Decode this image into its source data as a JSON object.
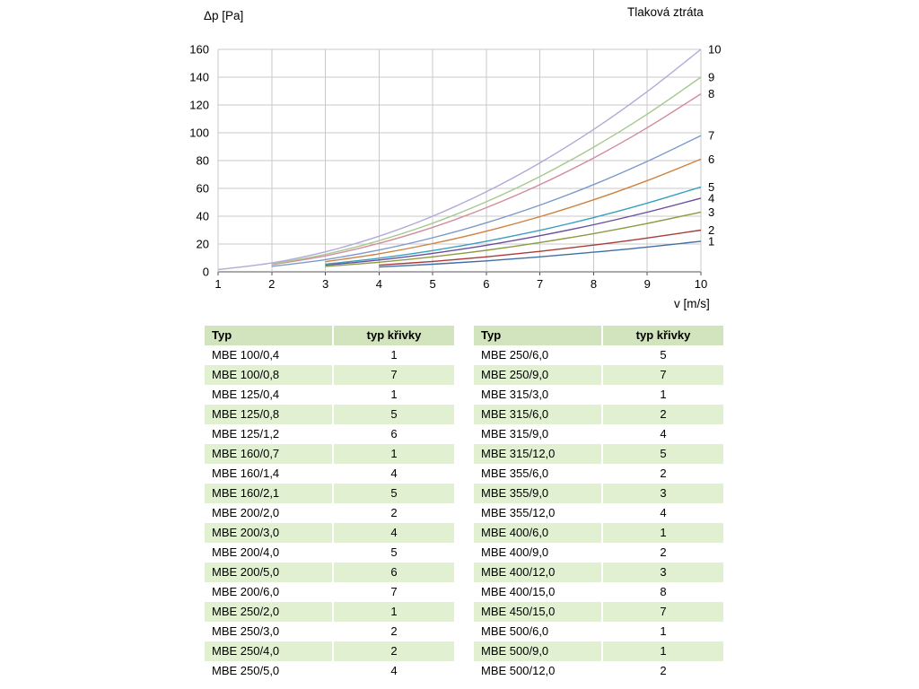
{
  "chart": {
    "title": "Tlaková ztráta",
    "y_axis_title": "Δp [Pa]",
    "x_axis_title": "v [m/s]"
  },
  "chart_data": {
    "type": "line",
    "title": "Tlaková ztráta",
    "xlabel": "v [m/s]",
    "ylabel": "Δp [Pa]",
    "xlim": [
      1,
      10
    ],
    "ylim": [
      0,
      160
    ],
    "x_ticks": [
      1,
      2,
      3,
      4,
      5,
      6,
      7,
      8,
      9,
      10
    ],
    "y_ticks": [
      0,
      20,
      40,
      60,
      80,
      100,
      120,
      140,
      160
    ],
    "grid": true,
    "legend_position": "curve-end-labels-right",
    "grid_color": "#c8c8c8",
    "axis_color": "#555555",
    "series": [
      {
        "name": "1",
        "color": "#3f6fa8",
        "points": [
          [
            4,
            3.5
          ],
          [
            5,
            5.5
          ],
          [
            6,
            7.9
          ],
          [
            7,
            10.8
          ],
          [
            8,
            14.1
          ],
          [
            9,
            17.8
          ],
          [
            10,
            22
          ]
        ]
      },
      {
        "name": "2",
        "color": "#a83c3c",
        "points": [
          [
            4,
            4.8
          ],
          [
            5,
            7.5
          ],
          [
            6,
            10.8
          ],
          [
            7,
            14.7
          ],
          [
            8,
            19.2
          ],
          [
            9,
            24.3
          ],
          [
            10,
            30
          ]
        ]
      },
      {
        "name": "3",
        "color": "#8d9a42",
        "points": [
          [
            3,
            3.9
          ],
          [
            4,
            6.9
          ],
          [
            5,
            10.8
          ],
          [
            6,
            15.5
          ],
          [
            7,
            21.1
          ],
          [
            8,
            27.5
          ],
          [
            9,
            34.8
          ],
          [
            10,
            43
          ]
        ]
      },
      {
        "name": "4",
        "color": "#6a4d9e",
        "points": [
          [
            3,
            4.8
          ],
          [
            4,
            8.5
          ],
          [
            5,
            13.3
          ],
          [
            6,
            19.1
          ],
          [
            7,
            26.0
          ],
          [
            8,
            33.9
          ],
          [
            9,
            42.9
          ],
          [
            10,
            53
          ]
        ]
      },
      {
        "name": "5",
        "color": "#3a9fc0",
        "points": [
          [
            3,
            5.5
          ],
          [
            4,
            9.8
          ],
          [
            5,
            15.3
          ],
          [
            6,
            22.0
          ],
          [
            7,
            29.9
          ],
          [
            8,
            39.0
          ],
          [
            9,
            49.4
          ],
          [
            10,
            61
          ]
        ]
      },
      {
        "name": "6",
        "color": "#cf813f",
        "points": [
          [
            3,
            7.3
          ],
          [
            4,
            13.0
          ],
          [
            5,
            20.3
          ],
          [
            6,
            29.2
          ],
          [
            7,
            39.7
          ],
          [
            8,
            51.8
          ],
          [
            9,
            65.6
          ],
          [
            10,
            81
          ]
        ]
      },
      {
        "name": "7",
        "color": "#7c99cc",
        "points": [
          [
            2,
            3.9
          ],
          [
            3,
            8.8
          ],
          [
            4,
            15.7
          ],
          [
            5,
            24.5
          ],
          [
            6,
            35.3
          ],
          [
            7,
            48.0
          ],
          [
            8,
            62.7
          ],
          [
            9,
            79.4
          ],
          [
            10,
            98
          ]
        ]
      },
      {
        "name": "8",
        "color": "#d28c9c",
        "points": [
          [
            2,
            5.1
          ],
          [
            3,
            11.5
          ],
          [
            4,
            20.5
          ],
          [
            5,
            32.0
          ],
          [
            6,
            46.1
          ],
          [
            7,
            62.7
          ],
          [
            8,
            81.9
          ],
          [
            9,
            103.7
          ],
          [
            10,
            128
          ]
        ]
      },
      {
        "name": "9",
        "color": "#a6c98d",
        "points": [
          [
            2,
            5.6
          ],
          [
            3,
            12.6
          ],
          [
            4,
            22.4
          ],
          [
            5,
            35.0
          ],
          [
            6,
            50.4
          ],
          [
            7,
            68.6
          ],
          [
            8,
            89.6
          ],
          [
            9,
            113.4
          ],
          [
            10,
            140
          ]
        ]
      },
      {
        "name": "10",
        "color": "#b2a9d8",
        "points": [
          [
            1,
            1.6
          ],
          [
            2,
            6.4
          ],
          [
            3,
            14.4
          ],
          [
            4,
            25.6
          ],
          [
            5,
            40.0
          ],
          [
            6,
            57.6
          ],
          [
            7,
            78.4
          ],
          [
            8,
            102.4
          ],
          [
            9,
            129.6
          ],
          [
            10,
            160
          ]
        ]
      }
    ]
  },
  "tables": {
    "headers": [
      "Typ",
      "typ křivky"
    ],
    "left_rows": [
      [
        "MBE 100/0,4",
        "1"
      ],
      [
        "MBE 100/0,8",
        "7"
      ],
      [
        "MBE 125/0,4",
        "1"
      ],
      [
        "MBE 125/0,8",
        "5"
      ],
      [
        "MBE 125/1,2",
        "6"
      ],
      [
        "MBE 160/0,7",
        "1"
      ],
      [
        "MBE 160/1,4",
        "4"
      ],
      [
        "MBE 160/2,1",
        "5"
      ],
      [
        "MBE 200/2,0",
        "2"
      ],
      [
        "MBE 200/3,0",
        "4"
      ],
      [
        "MBE 200/4,0",
        "5"
      ],
      [
        "MBE 200/5,0",
        "6"
      ],
      [
        "MBE 200/6,0",
        "7"
      ],
      [
        "MBE 250/2,0",
        "1"
      ],
      [
        "MBE 250/3,0",
        "2"
      ],
      [
        "MBE 250/4,0",
        "2"
      ],
      [
        "MBE 250/5,0",
        "4"
      ]
    ],
    "right_rows": [
      [
        "MBE 250/6,0",
        "5"
      ],
      [
        "MBE 250/9,0",
        "7"
      ],
      [
        "MBE 315/3,0",
        "1"
      ],
      [
        "MBE 315/6,0",
        "2"
      ],
      [
        "MBE 315/9,0",
        "4"
      ],
      [
        "MBE 315/12,0",
        "5"
      ],
      [
        "MBE 355/6,0",
        "2"
      ],
      [
        "MBE 355/9,0",
        "3"
      ],
      [
        "MBE 355/12,0",
        "4"
      ],
      [
        "MBE 400/6,0",
        "1"
      ],
      [
        "MBE 400/9,0",
        "2"
      ],
      [
        "MBE 400/12,0",
        "3"
      ],
      [
        "MBE 400/15,0",
        "8"
      ],
      [
        "MBE 450/15,0",
        "7"
      ],
      [
        "MBE 500/6,0",
        "1"
      ],
      [
        "MBE 500/9,0",
        "1"
      ],
      [
        "MBE 500/12,0",
        "2"
      ]
    ]
  }
}
